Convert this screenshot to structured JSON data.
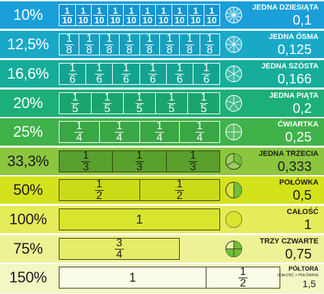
{
  "rows": [
    {
      "percent": "10%",
      "name": "JEDNA DZIESIĄTA",
      "value": "0,1",
      "num": "1",
      "den": "10",
      "parts": 10,
      "color": "#1a9fd9",
      "bar": "#1595d0",
      "filled": 1
    },
    {
      "percent": "12,5%",
      "name": "JEDNA ÓSMA",
      "value": "0,125",
      "num": "1",
      "den": "8",
      "parts": 8,
      "color": "#1aa8c7",
      "bar": "#179fbd",
      "filled": 1
    },
    {
      "percent": "16,6%",
      "name": "JEDNA SZÓSTA",
      "value": "0,166",
      "num": "1",
      "den": "6",
      "parts": 6,
      "color": "#16ad9b",
      "bar": "#14a391",
      "filled": 1
    },
    {
      "percent": "20%",
      "name": "JEDNA PIĄTA",
      "value": "0,2",
      "num": "1",
      "den": "5",
      "parts": 5,
      "color": "#1daf78",
      "bar": "#1aa56e",
      "filled": 1
    },
    {
      "percent": "25%",
      "name": "ĆWIARTKA",
      "value": "0,25",
      "num": "1",
      "den": "4",
      "parts": 4,
      "color": "#3fb24a",
      "bar": "#39a743",
      "filled": 1
    },
    {
      "percent": "33,3%",
      "name": "JEDNA TRZECIA",
      "value": "0,333",
      "num": "1",
      "den": "3",
      "parts": 3,
      "color": "#8cc63f",
      "bar": "#7db636",
      "filled": 1
    },
    {
      "percent": "50%",
      "name": "POŁÓWKA",
      "value": "0,5",
      "num": "1",
      "den": "2",
      "parts": 2,
      "color": "#d4e21c",
      "bar": "#cadb18",
      "filled": 0.5
    },
    {
      "percent": "100%",
      "name": "CAŁOŚĆ",
      "value": "1",
      "whole": "1",
      "parts": 1,
      "color": "#e4ec5a",
      "bar": "#d8e52e",
      "filled": 1
    },
    {
      "percent": "75%",
      "name": "TRZY CZWARTE",
      "value": "0,75",
      "num": "3",
      "den": "4",
      "parts": 1,
      "color": "#eef296",
      "bar": "#e5ec66",
      "filled": 0.75
    },
    {
      "percent": "150%",
      "name": "PÓŁTORA",
      "sub": "(CAŁOŚĆ + POŁÓWKA)",
      "value": "1,5",
      "whole": "1",
      "num": "1",
      "den": "2",
      "color": "#f4f7c4",
      "bar": "#f4f7c4",
      "filled": 1.5
    }
  ]
}
